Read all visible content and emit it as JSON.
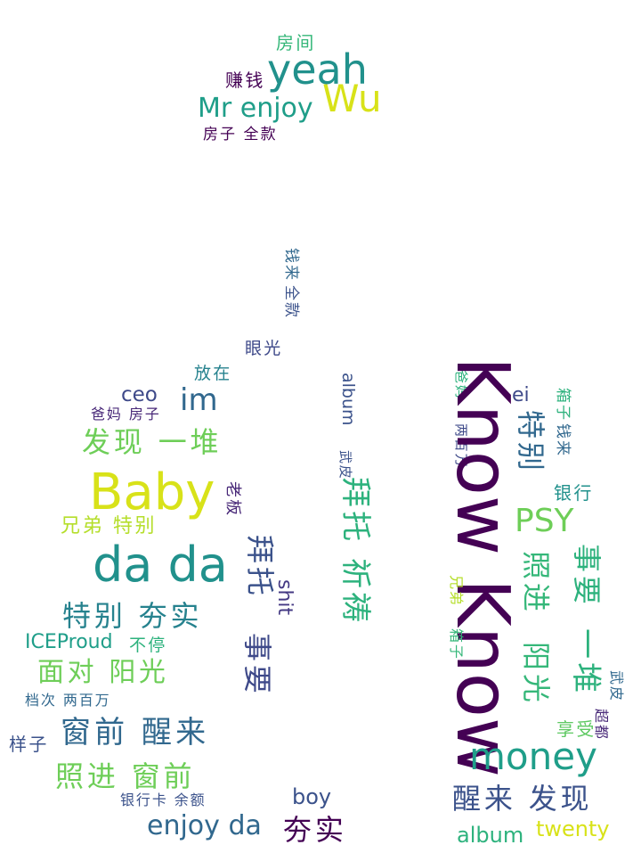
{
  "words": [
    {
      "text": "房间",
      "color": "#35b779"
    },
    {
      "text": "yeah",
      "color": "#21918c"
    },
    {
      "text": "赚钱",
      "color": "#440154"
    },
    {
      "text": "Wu",
      "color": "#d8e219"
    },
    {
      "text": "Mr enjoy",
      "color": "#1f9e89"
    },
    {
      "text": "房子 全款",
      "color": "#440154"
    },
    {
      "text": "钱来",
      "color": "#31688e"
    },
    {
      "text": "全款",
      "color": "#3b528b"
    },
    {
      "text": "眼光",
      "color": "#3e4989"
    },
    {
      "text": "放在",
      "color": "#26828e"
    },
    {
      "text": "ceo",
      "color": "#3e4989"
    },
    {
      "text": "im",
      "color": "#31688e"
    },
    {
      "text": "爸妈 房子",
      "color": "#482878"
    },
    {
      "text": "发现 一堆",
      "color": "#6ece58"
    },
    {
      "text": "Baby",
      "color": "#d8e219"
    },
    {
      "text": "老板",
      "color": "#482878"
    },
    {
      "text": "兄弟 特别",
      "color": "#b5de2b"
    },
    {
      "text": "da da",
      "color": "#21918c"
    },
    {
      "text": "拜托",
      "color": "#3b528b"
    },
    {
      "text": "特别 夯实",
      "color": "#26828e"
    },
    {
      "text": "shit",
      "color": "#443983"
    },
    {
      "text": "ICEProud",
      "color": "#1f9e89"
    },
    {
      "text": "不停",
      "color": "#2db27d"
    },
    {
      "text": "面对 阳光",
      "color": "#6ece58"
    },
    {
      "text": "事要",
      "color": "#3e4989"
    },
    {
      "text": "档次 两百万",
      "color": "#31688e"
    },
    {
      "text": "窗前 醒来",
      "color": "#31688e"
    },
    {
      "text": "样子",
      "color": "#3b528b"
    },
    {
      "text": "照进 窗前",
      "color": "#6ece58"
    },
    {
      "text": "银行卡 余额",
      "color": "#3b528b"
    },
    {
      "text": "boy",
      "color": "#3b528b"
    },
    {
      "text": "enjoy da",
      "color": "#31688e"
    },
    {
      "text": "夯实",
      "color": "#440154"
    },
    {
      "text": "album",
      "color": "#3b528b"
    },
    {
      "text": "武皮",
      "color": "#3b528b"
    },
    {
      "text": "拜托 祈祷",
      "color": "#2db27d"
    },
    {
      "text": "爸妈",
      "color": "#2db27d"
    },
    {
      "text": "两百万",
      "color": "#3e4989"
    },
    {
      "text": "Know Know",
      "color": "#440154"
    },
    {
      "text": "ei",
      "color": "#3e4989"
    },
    {
      "text": "特别",
      "color": "#31688e"
    },
    {
      "text": "箱子",
      "color": "#2db27d"
    },
    {
      "text": "钱来",
      "color": "#31688e"
    },
    {
      "text": "银行",
      "color": "#21918c"
    },
    {
      "text": "PSY",
      "color": "#6ece58"
    },
    {
      "text": "事要",
      "color": "#2db27d"
    },
    {
      "text": "照进",
      "color": "#35b779"
    },
    {
      "text": "兄弟",
      "color": "#b5de2b"
    },
    {
      "text": "箱子",
      "color": "#35b779"
    },
    {
      "text": "一堆",
      "color": "#2db27d"
    },
    {
      "text": "阳光",
      "color": "#35b779"
    },
    {
      "text": "享受",
      "color": "#5ec962"
    },
    {
      "text": "武皮",
      "color": "#31688e"
    },
    {
      "text": "超都",
      "color": "#482878"
    },
    {
      "text": "money",
      "color": "#1f9e89"
    },
    {
      "text": "醒来 发现",
      "color": "#3b528b"
    },
    {
      "text": "album",
      "color": "#2db27d"
    },
    {
      "text": "twenty",
      "color": "#d8e219"
    }
  ]
}
